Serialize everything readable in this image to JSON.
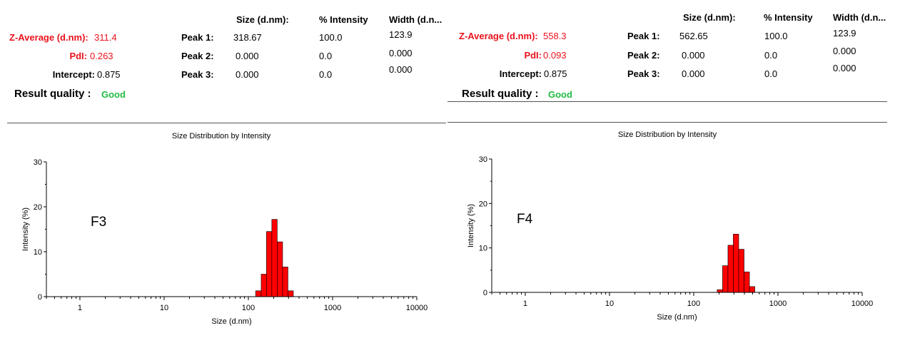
{
  "panels": [
    {
      "headers": {
        "size": "Size (d.nm):",
        "intensity": "% Intensity",
        "width": "Width (d.n..."
      },
      "z_average": {
        "label": "Z-Average (d.nm):",
        "value": "311.4"
      },
      "pdi": {
        "label": "PdI:",
        "value": "0.263"
      },
      "intercept": {
        "label": "Intercept:",
        "value": "0.875"
      },
      "peaks": [
        {
          "label": "Peak 1:",
          "size": "318.67",
          "intensity": "100.0",
          "width": "123.9"
        },
        {
          "label": "Peak 2:",
          "size": "0.000",
          "intensity": "0.0",
          "width": "0.000"
        },
        {
          "label": "Peak 3:",
          "size": "0.000",
          "intensity": "0.0",
          "width": "0.000"
        }
      ],
      "result_quality": {
        "label": "Result quality :",
        "value": "Good"
      },
      "sample_label": "F3"
    },
    {
      "headers": {
        "size": "Size (d.nm):",
        "intensity": "% Intensity",
        "width": "Width (d.n..."
      },
      "z_average": {
        "label": "Z-Average (d.nm):",
        "value": "558.3"
      },
      "pdi": {
        "label": "PdI:",
        "value": "0.093"
      },
      "intercept": {
        "label": "Intercept:",
        "value": "0.875"
      },
      "peaks": [
        {
          "label": "Peak 1:",
          "size": "562.65",
          "intensity": "100.0",
          "width": "123.9"
        },
        {
          "label": "Peak 2:",
          "size": "0.000",
          "intensity": "0.0",
          "width": "0.000"
        },
        {
          "label": "Peak 3:",
          "size": "0.000",
          "intensity": "0.0",
          "width": "0.000"
        }
      ],
      "result_quality": {
        "label": "Result quality :",
        "value": "Good"
      },
      "sample_label": "F4"
    }
  ],
  "colors": {
    "bar_fill": "#ff0000",
    "bar_stroke": "#000000",
    "highlight": "#e8121c",
    "good": "#22bb44"
  },
  "chart_data": [
    {
      "type": "bar",
      "title": "Size Distribution by Intensity",
      "xlabel": "Size (d.nm)",
      "ylabel": "Intensity (%)",
      "x_scale": "log",
      "xlim": [
        0.4,
        10000
      ],
      "ylim": [
        0,
        30
      ],
      "x_tick_labels": [
        "1",
        "10",
        "100",
        "1000",
        "10000"
      ],
      "y_tick_labels": [
        "0",
        "10",
        "20",
        "30"
      ],
      "grid": false,
      "bins": [
        {
          "x0": 122,
          "x1": 142,
          "value": 1.3
        },
        {
          "x0": 142,
          "x1": 164,
          "value": 5.0
        },
        {
          "x0": 164,
          "x1": 190,
          "value": 14.5
        },
        {
          "x0": 190,
          "x1": 220,
          "value": 17.2
        },
        {
          "x0": 220,
          "x1": 255,
          "value": 12.2
        },
        {
          "x0": 255,
          "x1": 295,
          "value": 6.6
        },
        {
          "x0": 295,
          "x1": 342,
          "value": 1.3
        }
      ]
    },
    {
      "type": "bar",
      "title": "Size Distribution by Intensity",
      "xlabel": "Size (d.nm)",
      "ylabel": "Intensity (%)",
      "x_scale": "log",
      "xlim": [
        0.4,
        10000
      ],
      "ylim": [
        0,
        30
      ],
      "x_tick_labels": [
        "1",
        "10",
        "100",
        "1000",
        "10000"
      ],
      "y_tick_labels": [
        "0",
        "10",
        "20",
        "30"
      ],
      "grid": false,
      "bins": [
        {
          "x0": 190,
          "x1": 220,
          "value": 0.6
        },
        {
          "x0": 220,
          "x1": 255,
          "value": 6.0
        },
        {
          "x0": 255,
          "x1": 295,
          "value": 10.6
        },
        {
          "x0": 295,
          "x1": 342,
          "value": 13.1
        },
        {
          "x0": 342,
          "x1": 396,
          "value": 9.7
        },
        {
          "x0": 396,
          "x1": 459,
          "value": 4.6
        },
        {
          "x0": 459,
          "x1": 531,
          "value": 1.3
        }
      ]
    }
  ]
}
